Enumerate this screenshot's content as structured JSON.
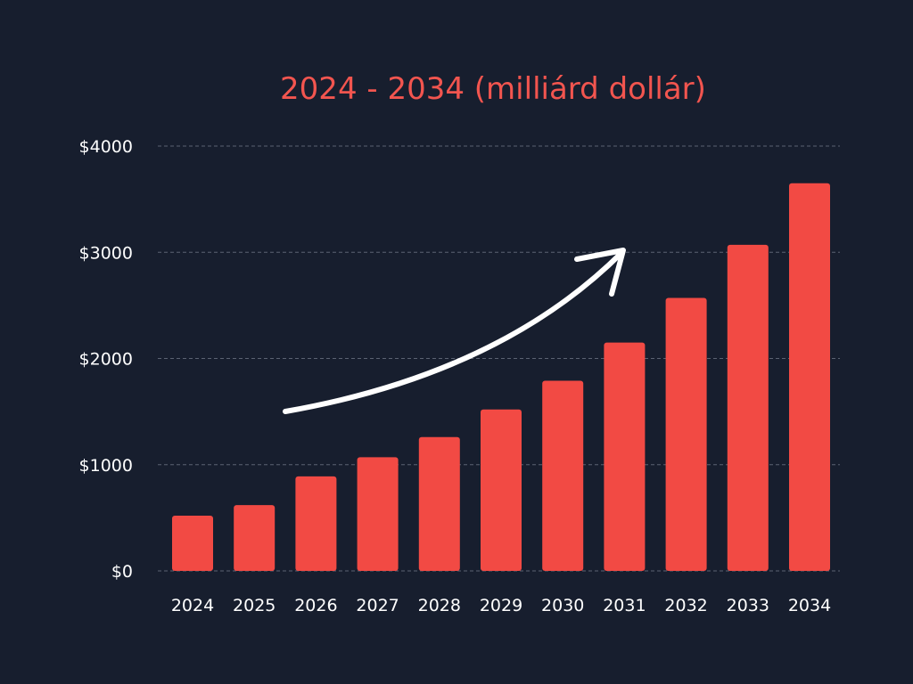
{
  "chart_data": {
    "type": "bar",
    "title": "2024 - 2034 (milliárd dollár)",
    "xlabel": "",
    "ylabel": "",
    "categories": [
      "2024",
      "2025",
      "2026",
      "2027",
      "2028",
      "2029",
      "2030",
      "2031",
      "2032",
      "2033",
      "2034"
    ],
    "values": [
      520,
      620,
      890,
      1070,
      1260,
      1520,
      1790,
      2150,
      2570,
      3070,
      3650
    ],
    "ylim": [
      0,
      4000
    ],
    "yticks": [
      0,
      1000,
      2000,
      3000,
      4000
    ],
    "ytick_labels": [
      "$0",
      "$1000",
      "$2000",
      "$3000",
      "$4000"
    ],
    "grid": true,
    "annotation": "upward-trend-arrow"
  },
  "colors": {
    "background": "#171e2e",
    "bar": "#f24a44",
    "title": "#f2554f",
    "text": "#ffffff",
    "grid": "#5b6272"
  }
}
